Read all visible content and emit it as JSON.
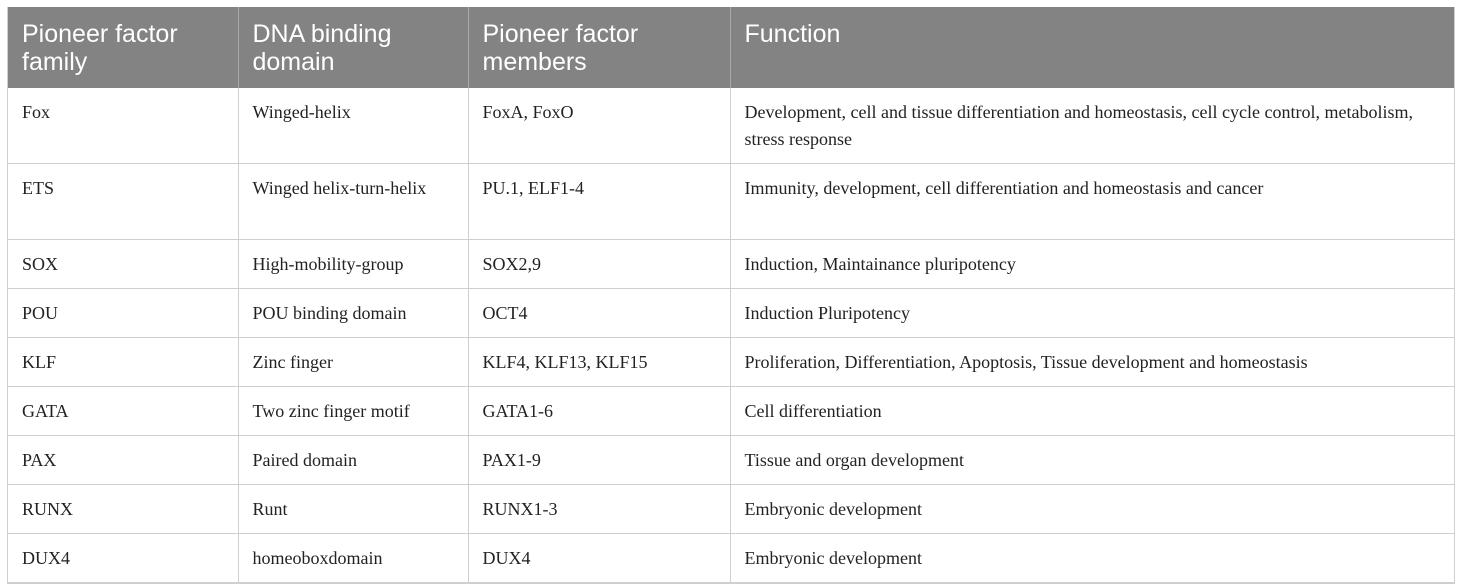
{
  "table": {
    "headers": [
      "Pioneer factor family",
      "DNA binding domain",
      "Pioneer factor members",
      "Function"
    ],
    "rows": [
      [
        "Fox",
        "Winged-helix",
        "FoxA, FoxO",
        "Development, cell and tissue differentiation and homeostasis, cell cycle control, metabolism, stress response"
      ],
      [
        "ETS",
        "Winged helix-turn-helix",
        "PU.1, ELF1-4",
        "Immunity, development, cell differentiation and homeostasis and cancer"
      ],
      [
        "SOX",
        "High-mobility-group",
        "SOX2,9",
        "Induction, Maintainance pluripotency"
      ],
      [
        "POU",
        "POU binding domain",
        "OCT4",
        "Induction Pluripotency"
      ],
      [
        "KLF",
        "Zinc finger",
        "KLF4, KLF13, KLF15",
        "Proliferation, Differentiation, Apoptosis, Tissue development and homeostasis"
      ],
      [
        "GATA",
        "Two zinc finger motif",
        "GATA1-6",
        "Cell differentiation"
      ],
      [
        "PAX",
        "Paired domain",
        "PAX1-9",
        "Tissue and organ development"
      ],
      [
        "RUNX",
        "Runt",
        "RUNX1-3",
        "Embryonic development"
      ],
      [
        "DUX4",
        "homeoboxdomain",
        "DUX4",
        "Embryonic development"
      ]
    ]
  }
}
